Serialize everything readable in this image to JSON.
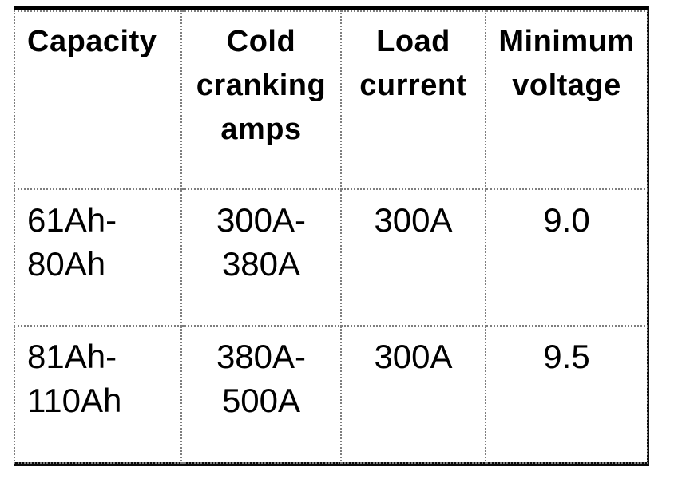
{
  "document": {
    "kind": "scanned battery load test specification table",
    "colors": {
      "background": "#ffffff",
      "text": "#000000",
      "frame": "#000000",
      "grid_line": "#7e7e7e"
    }
  },
  "table": {
    "headers": [
      "Capacity",
      "Cold\ncranking\namps",
      "Load\ncurrent",
      "Minimum\nvoltage"
    ],
    "rows": [
      [
        "61Ah-\n80Ah",
        "300A-\n380A",
        "300A",
        "9.0"
      ],
      [
        "81Ah-\n110Ah",
        "380A-\n500A",
        "300A",
        "9.5"
      ]
    ]
  },
  "chart_data": {
    "type": "table",
    "title": "",
    "columns": [
      "Capacity",
      "Cold cranking amps",
      "Load current",
      "Minimum voltage"
    ],
    "rows": [
      [
        "61Ah-80Ah",
        "300A-380A",
        "300A",
        "9.0"
      ],
      [
        "81Ah-110Ah",
        "380A-500A",
        "300A",
        "9.5"
      ]
    ]
  }
}
